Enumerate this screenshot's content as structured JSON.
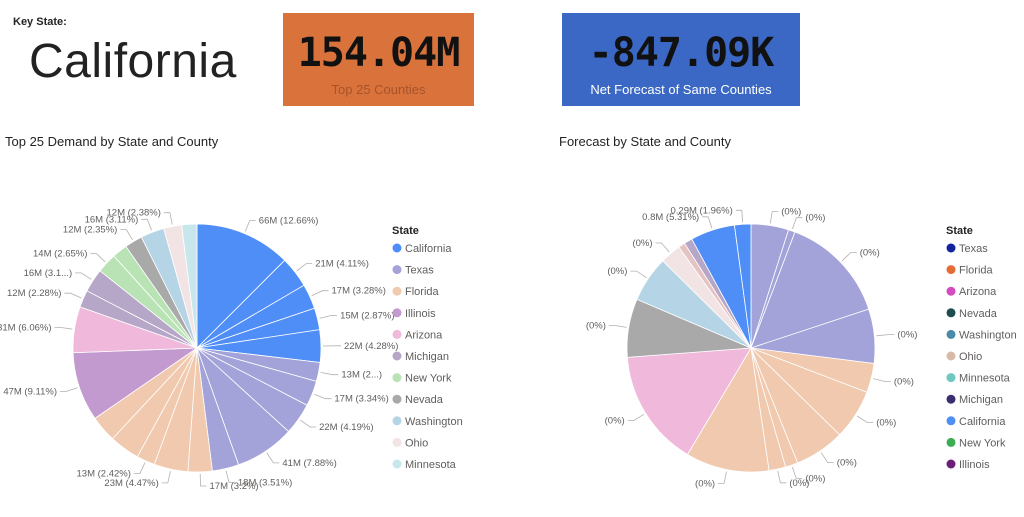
{
  "header": {
    "key_state_label": "Key State:",
    "key_state_value": "California"
  },
  "cards": [
    {
      "value": "154.04M",
      "caption": "Top 25 Counties",
      "color": "#d9733b"
    },
    {
      "value": "-847.09K",
      "caption": "Net Forecast of Same Counties",
      "color": "#3a68c4"
    }
  ],
  "chart_data": [
    {
      "type": "pie",
      "title": "Top 25 Demand by State and County",
      "legend": {
        "title": "State",
        "placement": "right",
        "items": [
          {
            "name": "California",
            "color": "#4f8ef7"
          },
          {
            "name": "Texas",
            "color": "#a3a3d9"
          },
          {
            "name": "Florida",
            "color": "#f0c9ae"
          },
          {
            "name": "Illinois",
            "color": "#c39ad0"
          },
          {
            "name": "Arizona",
            "color": "#f0b8da"
          },
          {
            "name": "Michigan",
            "color": "#b6a6c7"
          },
          {
            "name": "New York",
            "color": "#b9e3b4"
          },
          {
            "name": "Nevada",
            "color": "#a9a9a9"
          },
          {
            "name": "Washington",
            "color": "#b5d5e6"
          },
          {
            "name": "Ohio",
            "color": "#f2e4e4"
          },
          {
            "name": "Minnesota",
            "color": "#c7e7ec"
          }
        ]
      },
      "slices": [
        {
          "state": "California",
          "label": "66M (12.66%)",
          "value": 12.66
        },
        {
          "state": "California",
          "label": "21M (4.11%)",
          "value": 4.11
        },
        {
          "state": "California",
          "label": "17M (3.28%)",
          "value": 3.28
        },
        {
          "state": "California",
          "label": "15M (2.87%)",
          "value": 2.87
        },
        {
          "state": "California",
          "label": "22M (4.28%)",
          "value": 4.28
        },
        {
          "state": "Texas",
          "label": "13M (2...)",
          "value": 2.5
        },
        {
          "state": "Texas",
          "label": "17M (3.34%)",
          "value": 3.34
        },
        {
          "state": "Texas",
          "label": "22M (4.19%)",
          "value": 4.19
        },
        {
          "state": "Texas",
          "label": "41M (7.88%)",
          "value": 7.88
        },
        {
          "state": "Texas",
          "label": "18M (3.51%)",
          "value": 3.51
        },
        {
          "state": "Florida",
          "label": "17M (3.2%)",
          "value": 3.2
        },
        {
          "state": "Florida",
          "label": "23M (4.47%)",
          "value": 4.47
        },
        {
          "state": "Florida",
          "label": "13M (2.42%)",
          "value": 2.42
        },
        {
          "state": "Florida",
          "label": "",
          "value": 4.0
        },
        {
          "state": "Florida",
          "label": "",
          "value": 3.5
        },
        {
          "state": "Illinois",
          "label": "47M (9.11%)",
          "value": 9.11
        },
        {
          "state": "Arizona",
          "label": "31M (6.06%)",
          "value": 6.06
        },
        {
          "state": "Michigan",
          "label": "12M (2.28%)",
          "value": 2.28
        },
        {
          "state": "Michigan",
          "label": "16M (3.1...)",
          "value": 3.1
        },
        {
          "state": "New York",
          "label": "14M (2.65%)",
          "value": 2.65
        },
        {
          "state": "New York",
          "label": "",
          "value": 2.0
        },
        {
          "state": "Nevada",
          "label": "12M (2.35%)",
          "value": 2.35
        },
        {
          "state": "Washington",
          "label": "16M (3.11%)",
          "value": 3.11
        },
        {
          "state": "Ohio",
          "label": "12M (2.38%)",
          "value": 2.38
        },
        {
          "state": "Minnesota",
          "label": "",
          "value": 2.0
        }
      ]
    },
    {
      "type": "pie",
      "title": "Forecast by State and County",
      "legend": {
        "title": "State",
        "placement": "right",
        "items": [
          {
            "name": "Texas",
            "color": "#12239e"
          },
          {
            "name": "Florida",
            "color": "#e66c37"
          },
          {
            "name": "Arizona",
            "color": "#d64bbf"
          },
          {
            "name": "Nevada",
            "color": "#1e4d4f"
          },
          {
            "name": "Washington",
            "color": "#4a8ba8"
          },
          {
            "name": "Ohio",
            "color": "#d9b9a8"
          },
          {
            "name": "Minnesota",
            "color": "#6fc7c2"
          },
          {
            "name": "Michigan",
            "color": "#3b2d6e"
          },
          {
            "name": "California",
            "color": "#4f8ef7"
          },
          {
            "name": "New York",
            "color": "#3cad53"
          },
          {
            "name": "Illinois",
            "color": "#6b1f7a"
          }
        ]
      },
      "slices": [
        {
          "color": "#a3a3d9",
          "label": "(0%)",
          "value": 4.5
        },
        {
          "color": "#a3a3d9",
          "label": "(0%)",
          "value": 0.8
        },
        {
          "color": "#a3a3d9",
          "label": "(0%)",
          "value": 13.0
        },
        {
          "color": "#a3a3d9",
          "label": "(0%)",
          "value": 6.5
        },
        {
          "color": "#f0c9ae",
          "label": "(0%)",
          "value": 3.5
        },
        {
          "color": "#f0c9ae",
          "label": "(0%)",
          "value": 6.0
        },
        {
          "color": "#f0c9ae",
          "label": "(0%)",
          "value": 6.0
        },
        {
          "color": "#f0c9ae",
          "label": "(0%)",
          "value": 1.5
        },
        {
          "color": "#f0c9ae",
          "label": "(0%)",
          "value": 2.0
        },
        {
          "color": "#f0c9ae",
          "label": "(0%)",
          "value": 10.0
        },
        {
          "color": "#f0b8da",
          "label": "(0%)",
          "value": 14.0
        },
        {
          "color": "#a9a9a9",
          "label": "(0%)",
          "value": 7.0
        },
        {
          "color": "#b5d5e6",
          "label": "(0%)",
          "value": 5.5
        },
        {
          "color": "#f2e4e4",
          "label": "(0%)",
          "value": 2.5
        },
        {
          "color": "#e6c3c3",
          "label": "",
          "value": 0.8
        },
        {
          "color": "#b6a6c7",
          "label": "",
          "value": 1.0
        },
        {
          "color": "#4f8ef7",
          "label": "0.8M (5.31%)",
          "value": 5.31
        },
        {
          "color": "#4f8ef7",
          "label": "0.29M (1.96%)",
          "value": 1.96
        }
      ]
    }
  ]
}
